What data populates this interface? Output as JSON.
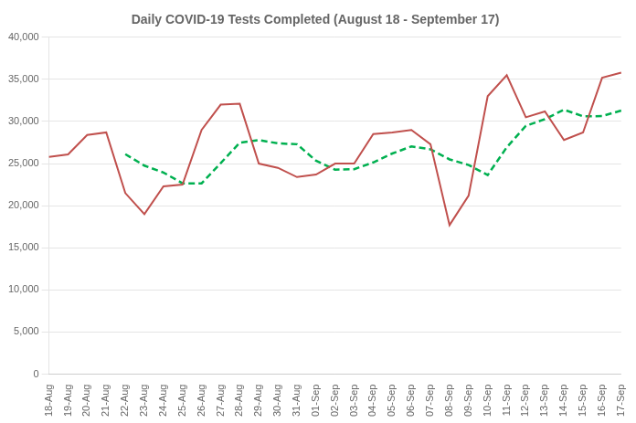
{
  "chart_data": {
    "type": "line",
    "title": "Daily COVID-19 Tests Completed (August 18 - September 17)",
    "categories": [
      "18-Aug",
      "19-Aug",
      "20-Aug",
      "21-Aug",
      "22-Aug",
      "23-Aug",
      "24-Aug",
      "25-Aug",
      "26-Aug",
      "27-Aug",
      "28-Aug",
      "29-Aug",
      "30-Aug",
      "31-Aug",
      "01-Sep",
      "02-Sep",
      "03-Sep",
      "04-Sep",
      "05-Sep",
      "06-Sep",
      "07-Sep",
      "08-Sep",
      "09-Sep",
      "10-Sep",
      "11-Sep",
      "12-Sep",
      "13-Sep",
      "14-Sep",
      "15-Sep",
      "16-Sep",
      "17-Sep"
    ],
    "series": [
      {
        "color": "#c0504d",
        "line_style": "solid",
        "values": [
          25800,
          26100,
          28400,
          28700,
          21500,
          19000,
          22300,
          22500,
          29000,
          32000,
          32100,
          25000,
          24500,
          23400,
          23700,
          25000,
          25000,
          28500,
          28700,
          29000,
          27300,
          17700,
          21200,
          33000,
          35500,
          30500,
          31200,
          27800,
          28700,
          35200,
          35800
        ]
      },
      {
        "color": "#00b050",
        "line_style": "dashed",
        "values": [
          null,
          null,
          null,
          null,
          26120,
          24760,
          23940,
          22660,
          22660,
          25060,
          27480,
          27800,
          27400,
          27300,
          25340,
          24280,
          24340,
          25140,
          26200,
          27040,
          26700,
          25500,
          24840,
          23640,
          26940,
          29480,
          30280,
          31400,
          30620,
          30640,
          31300
        ]
      }
    ],
    "ylim": [
      0,
      40000
    ],
    "yticks": [
      0,
      {
        "value": 5000,
        "label": "5,000"
      },
      {
        "value": 10000,
        "label": "10,000"
      },
      {
        "value": 15000,
        "label": "15,000"
      },
      {
        "value": 20000,
        "label": "20,000"
      },
      {
        "value": 25000,
        "label": "25,000"
      },
      {
        "value": 30000,
        "label": "30,000"
      },
      {
        "value": 35000,
        "label": "35,000"
      },
      {
        "value": 40000,
        "label": "40,000"
      }
    ],
    "grid": "y"
  }
}
